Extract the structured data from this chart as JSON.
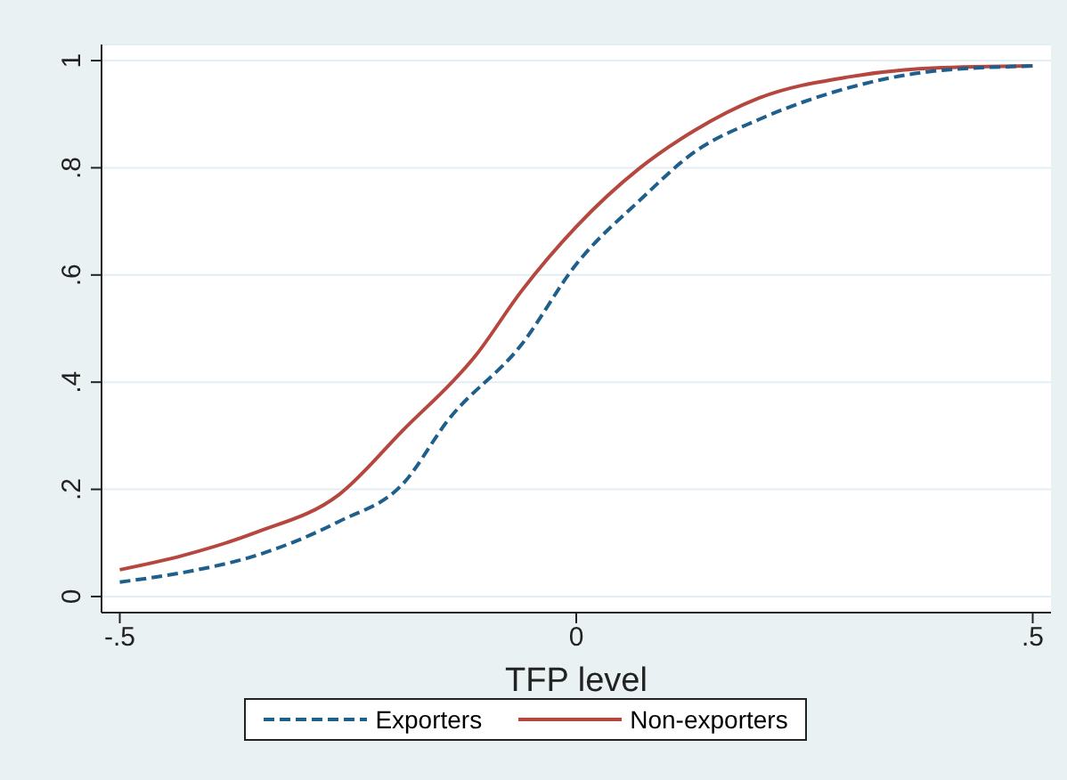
{
  "chart_data": {
    "type": "line",
    "xlabel": "TFP level",
    "xlim": [
      -0.52,
      0.52
    ],
    "ylim": [
      -0.03,
      1.03
    ],
    "xticks": [
      {
        "value": -0.5,
        "label": "-.5"
      },
      {
        "value": 0,
        "label": "0"
      },
      {
        "value": 0.5,
        "label": ".5"
      }
    ],
    "yticks": [
      {
        "value": 0,
        "label": "0"
      },
      {
        "value": 0.2,
        "label": ".2"
      },
      {
        "value": 0.4,
        "label": ".4"
      },
      {
        "value": 0.6,
        "label": ".6"
      },
      {
        "value": 0.8,
        "label": ".8"
      },
      {
        "value": 1,
        "label": "1"
      }
    ],
    "grid": "y",
    "legend": "bottom",
    "marker": "none",
    "series": [
      {
        "name": "Exporters",
        "color": "#1f5f8b",
        "line_style": "dashed",
        "x": [
          -0.5,
          -0.43,
          -0.35,
          -0.26,
          -0.19,
          -0.14,
          -0.06,
          0,
          0.07,
          0.13,
          0.2,
          0.3,
          0.39,
          0.5
        ],
        "values": [
          0.027,
          0.045,
          0.077,
          0.14,
          0.21,
          0.33,
          0.47,
          0.62,
          0.74,
          0.83,
          0.89,
          0.95,
          0.98,
          0.99
        ]
      },
      {
        "name": "Non-exporters",
        "color": "#b5473f",
        "line_style": "solid",
        "x": [
          -0.5,
          -0.43,
          -0.35,
          -0.26,
          -0.19,
          -0.11,
          -0.06,
          0,
          0.07,
          0.13,
          0.2,
          0.3,
          0.39,
          0.5
        ],
        "values": [
          0.05,
          0.077,
          0.12,
          0.19,
          0.31,
          0.45,
          0.57,
          0.69,
          0.8,
          0.87,
          0.93,
          0.97,
          0.986,
          0.99
        ]
      }
    ]
  }
}
